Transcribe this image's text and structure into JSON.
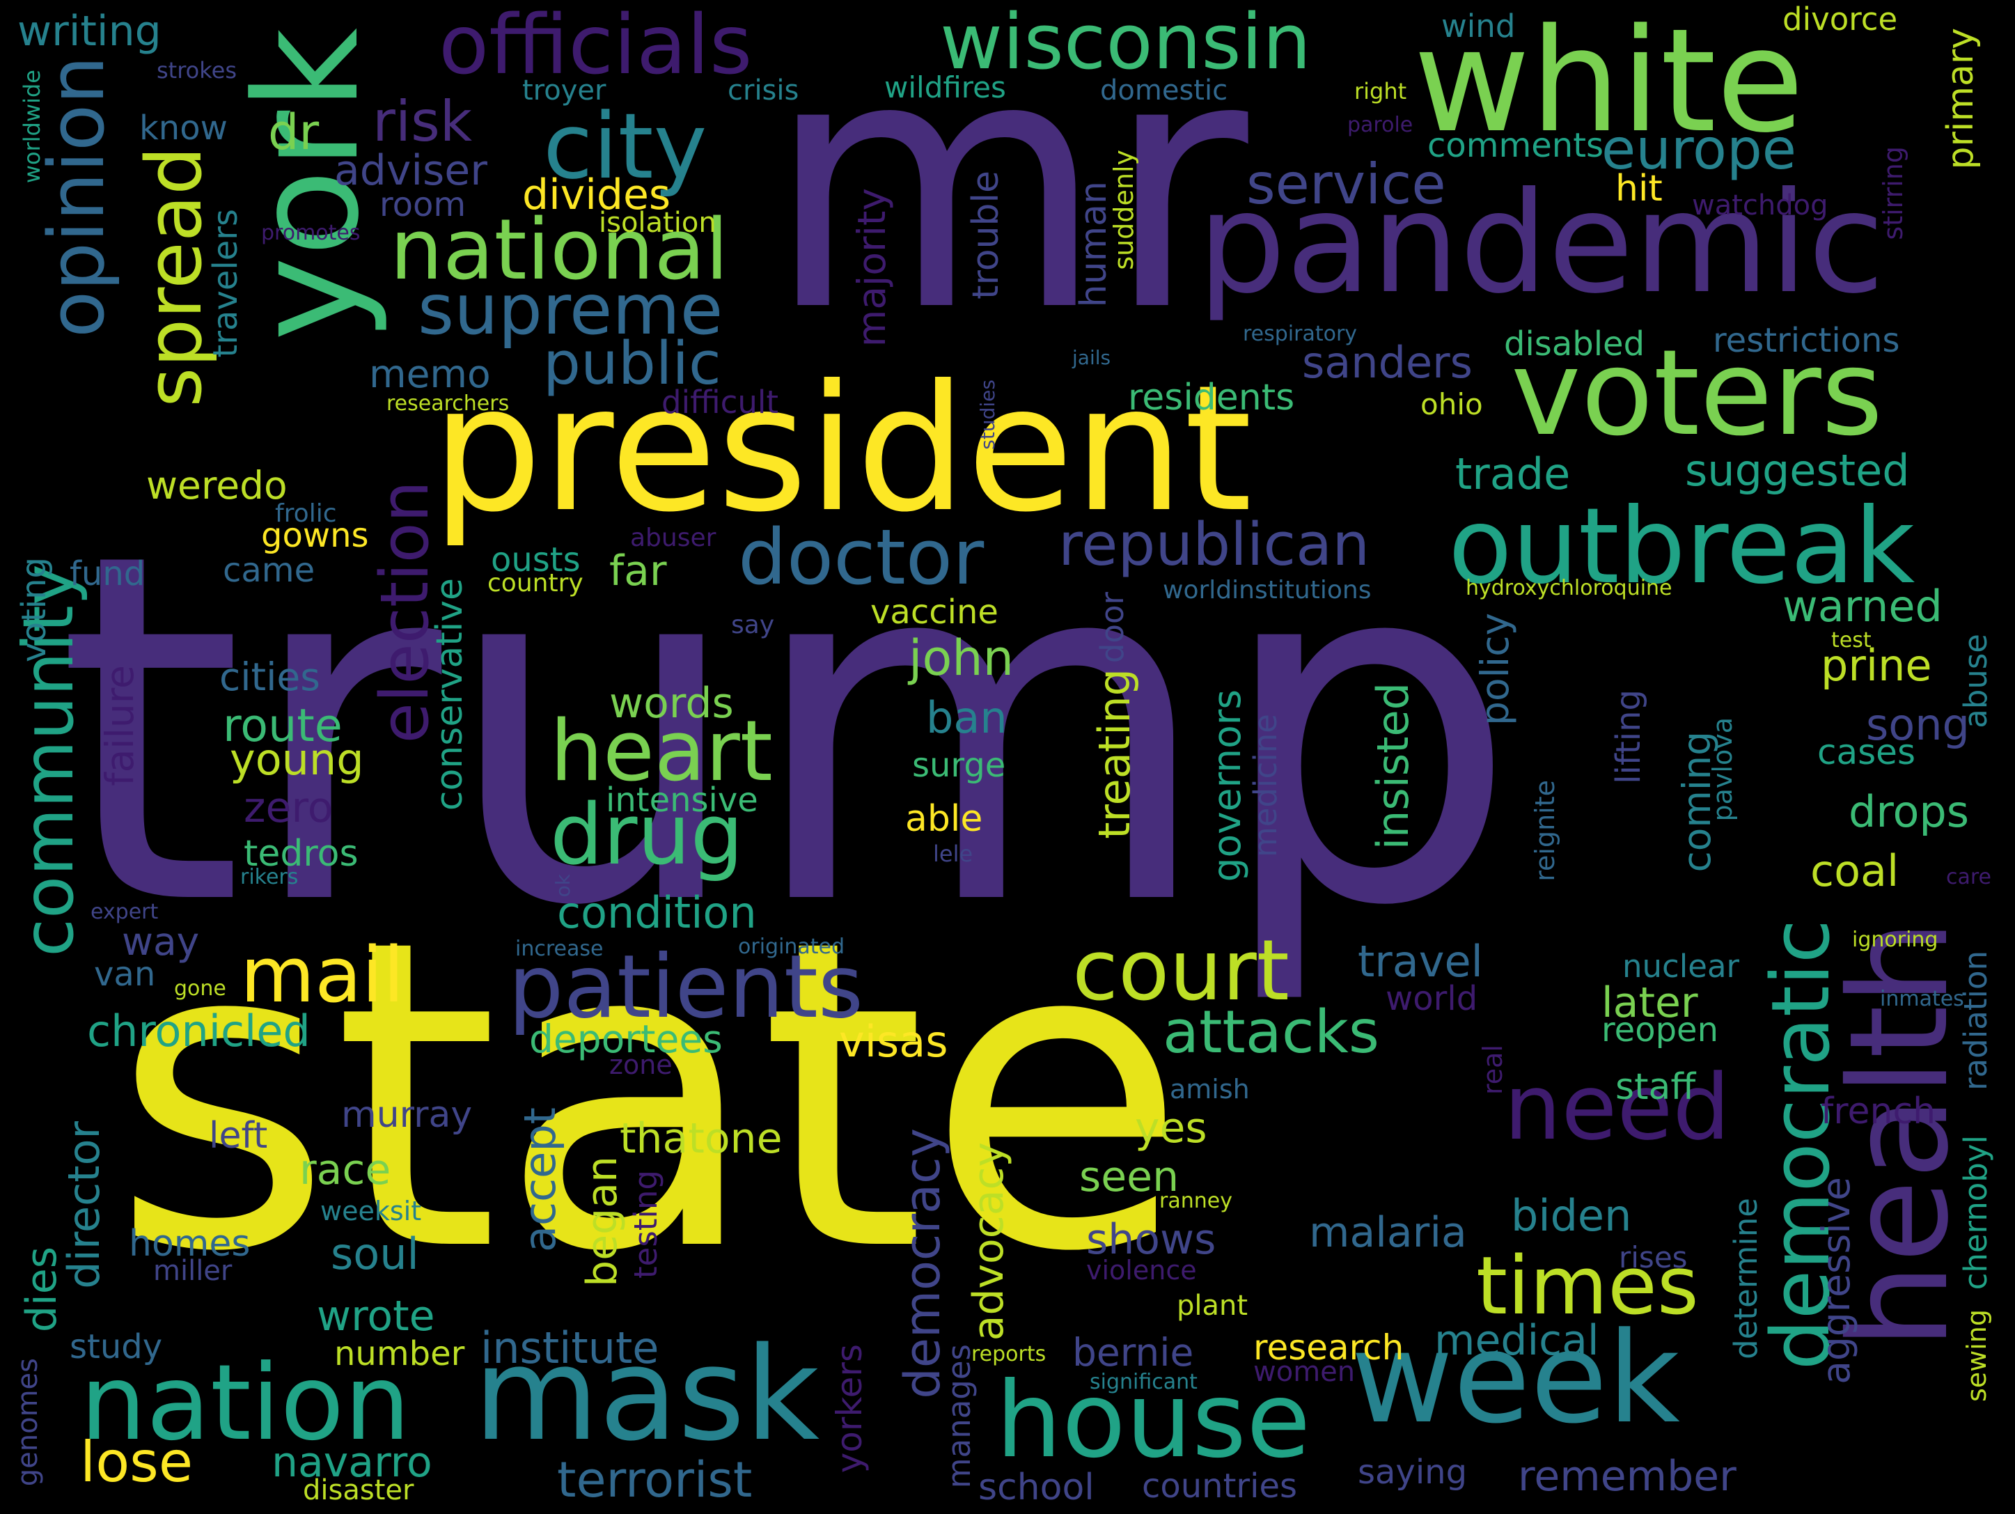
{
  "palette": {
    "dark_purple": "#3e1b6e",
    "purple": "#472d7b",
    "indigo": "#404589",
    "blue": "#31688e",
    "teal": "#26828e",
    "green_teal": "#20a386",
    "green": "#3bbb75",
    "light_green": "#7ad151",
    "lime": "#bddf26",
    "yellow": "#fde725",
    "background": "#000000"
  },
  "words": [
    "trump",
    "state",
    "mr",
    "president",
    "pandemic",
    "white",
    "york",
    "health",
    "voters",
    "week",
    "outbreak",
    "mask",
    "house",
    "nation",
    "patients",
    "officials",
    "wisconsin",
    "city",
    "national",
    "supreme",
    "heart",
    "drug",
    "doctor",
    "court",
    "need",
    "times",
    "democratic",
    "opinion",
    "spread",
    "community",
    "election",
    "mail",
    "republican",
    "public",
    "attacks",
    "europe",
    "service",
    "risk",
    "dr",
    "adviser",
    "room",
    "divides",
    "isolation",
    "memo",
    "weredo",
    "gowns",
    "fund",
    "came",
    "ousts",
    "far",
    "country",
    "vaccine",
    "john",
    "ban",
    "surge",
    "able",
    "lele",
    "intensive",
    "words",
    "condition",
    "travel",
    "world",
    "later",
    "reopen",
    "staff",
    "yes",
    "seen",
    "shows",
    "malaria",
    "violence",
    "plant",
    "research",
    "bernie",
    "medical",
    "women",
    "saying",
    "countries",
    "school",
    "terrorist",
    "lose",
    "navarro",
    "disaster",
    "number",
    "wrote",
    "study",
    "soul",
    "race",
    "murray",
    "left",
    "homes",
    "miller",
    "weeksit",
    "institute",
    "accept",
    "began",
    "testing",
    "democracy",
    "advocacy",
    "manages",
    "thatone",
    "deportees",
    "visas",
    "zone",
    "chronicled",
    "van",
    "gone",
    "way",
    "expert",
    "increase",
    "originated",
    "ok",
    "tedros",
    "rikers",
    "zero",
    "young",
    "route",
    "cities",
    "failure",
    "voting",
    "conservative",
    "treating",
    "door",
    "governors",
    "medicine",
    "insisted",
    "policy",
    "reignite",
    "coming",
    "lifting",
    "pavlova",
    "song",
    "cases",
    "drops",
    "coal",
    "care",
    "ignoring",
    "nuclear",
    "inmates",
    "radiation",
    "chernobyl",
    "sewing",
    "primary",
    "watchdog",
    "stirring",
    "divorce",
    "wind",
    "right",
    "parole",
    "comments",
    "hit",
    "suddenly",
    "human",
    "trouble",
    "majority",
    "difficult",
    "sanders",
    "residents",
    "ohio",
    "disabled",
    "restrictions",
    "respiratory",
    "jails",
    "studies",
    "researchers",
    "trade",
    "suggested",
    "warned",
    "prine",
    "abuse",
    "test",
    "hydroxychloroquine",
    "worldinstitutions",
    "say",
    "abuser",
    "frolic",
    "know",
    "writing",
    "strokes",
    "worldwide",
    "troyer",
    "crisis",
    "wildfires",
    "domestic",
    "promotes",
    "travelers",
    "reports",
    "significant",
    "amish",
    "real",
    "french",
    "ranney",
    "determine",
    "aggressive",
    "remember",
    "yorkers",
    "dies",
    "director",
    "genomes",
    "rises",
    "biden"
  ]
}
